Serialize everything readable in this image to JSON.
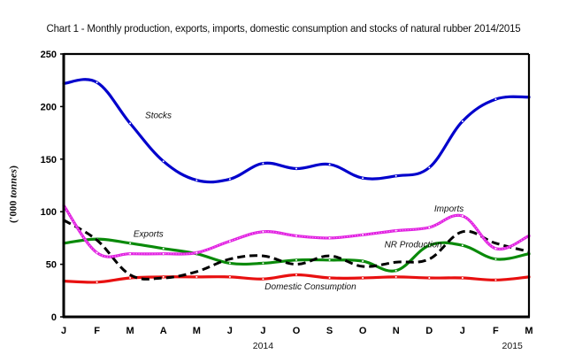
{
  "chart_data": {
    "type": "line",
    "title": "Chart 1 - Monthly production, exports, imports, domestic consumption and stocks of natural rubber 2014/2015",
    "xlabel": "",
    "ylabel": "('000 tonnes)",
    "ylabel_prefix": "('000 ",
    "ylabel_italic": "tonnes",
    "ylabel_suffix": ")",
    "ylim": [
      0,
      250
    ],
    "yticks": [
      0,
      50,
      100,
      150,
      200,
      250
    ],
    "x": [
      "J",
      "F",
      "M",
      "A",
      "M",
      "J",
      "J",
      "O",
      "S",
      "O",
      "N",
      "D",
      "J",
      "F",
      "M"
    ],
    "year_labels": [
      {
        "label": "2014",
        "at_index": 6
      },
      {
        "label": "2015",
        "at_index": 13.5
      }
    ],
    "grid": false,
    "series": [
      {
        "name": "Stocks",
        "color": "#0000cc",
        "style": "solid",
        "values": [
          222,
          223,
          184,
          148,
          130,
          131,
          146,
          141,
          145,
          132,
          134,
          142,
          186,
          207,
          209
        ]
      },
      {
        "name": "Imports",
        "color": "#e020e0",
        "style": "dotted",
        "values": [
          106,
          61,
          60,
          60,
          61,
          72,
          81,
          77,
          75,
          78,
          82,
          85,
          96,
          65,
          77
        ]
      },
      {
        "name": "NR Production",
        "color": "#000000",
        "style": "dashed",
        "values": [
          92,
          73,
          40,
          37,
          43,
          55,
          58,
          50,
          58,
          48,
          52,
          55,
          81,
          70,
          62
        ]
      },
      {
        "name": "Exports",
        "color": "#0a8a0a",
        "style": "solid",
        "values": [
          70,
          74,
          70,
          65,
          60,
          51,
          51,
          54,
          54,
          53,
          44,
          68,
          68,
          55,
          60
        ]
      },
      {
        "name": "Domestic Consumption",
        "color": "#e81010",
        "style": "solid",
        "values": [
          34,
          33,
          37,
          38,
          38,
          38,
          36,
          40,
          37,
          37,
          38,
          37,
          37,
          35,
          38
        ]
      }
    ],
    "annotations": [
      {
        "text": "Stocks",
        "series": "Stocks"
      },
      {
        "text": "Exports",
        "series": "Exports"
      },
      {
        "text": "Imports",
        "series": "Imports"
      },
      {
        "text": "NR Production",
        "series": "NR Production"
      },
      {
        "text": "Domestic Consumption",
        "series": "Domestic Consumption"
      }
    ]
  }
}
